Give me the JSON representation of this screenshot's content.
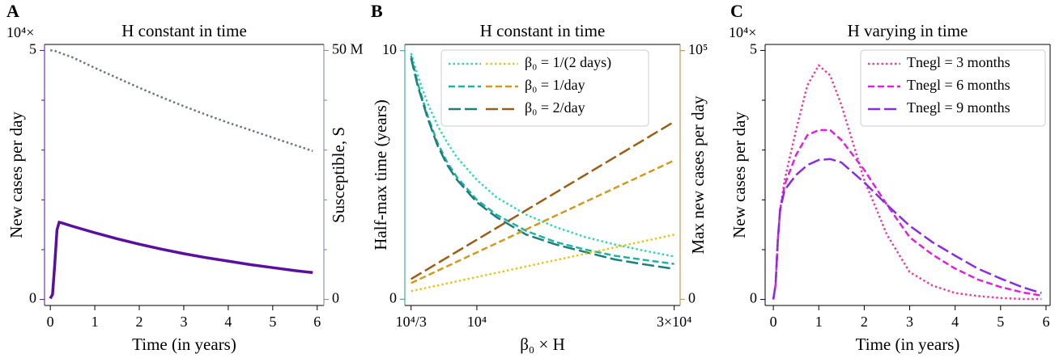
{
  "chart_data": [
    {
      "type": "line",
      "panel": "A",
      "title": "H constant in time",
      "xlabel": "Time (in years)",
      "ylabel": "New cases per day",
      "y2label": "Susceptible, S",
      "yoffset": "10⁴×",
      "ycolor": "#5b0f9e",
      "y2color": "#7a8699",
      "xlim": [
        -0.13,
        6.15
      ],
      "xticks": [
        0,
        1,
        2,
        3,
        4,
        5,
        6
      ],
      "ylim": [
        -0.12,
        5.12
      ],
      "yticks": [
        0,
        5
      ],
      "yminorticks": [
        1,
        2,
        3,
        4
      ],
      "y2lim": [
        -1.2,
        51.2
      ],
      "y2ticks": [
        0,
        {
          "value": 50,
          "label": "50 M"
        }
      ],
      "y2minorticks": [
        10,
        20,
        30,
        40
      ],
      "x": [
        0,
        0.05,
        0.1,
        0.15,
        0.2,
        0.25,
        0.5,
        1,
        1.5,
        2,
        2.5,
        3,
        3.5,
        4,
        4.5,
        5,
        5.5,
        5.9
      ],
      "series": [
        {
          "color": "#5b0f9e",
          "linestyle": "solid",
          "values": [
            0.02,
            0.1,
            0.7,
            1.4,
            1.55,
            1.54,
            1.47,
            1.34,
            1.22,
            1.11,
            1.01,
            0.92,
            0.84,
            0.77,
            0.7,
            0.64,
            0.58,
            0.54
          ]
        },
        {
          "color": "#6e7580",
          "linestyle": "dotted",
          "axis": "y2",
          "values": [
            50,
            50,
            49.9,
            49.8,
            49.6,
            49.4,
            48.6,
            46.5,
            44.5,
            42.5,
            40.6,
            38.8,
            37.1,
            35.5,
            34,
            32.5,
            31,
            29.8
          ]
        }
      ]
    },
    {
      "type": "line",
      "panel": "B",
      "title": "H constant in time",
      "xlabel": "β₀ × H",
      "ylabel": "Half-max time (years)",
      "y2label": "Max new cases per day",
      "ycolor": "#1a9e96",
      "y2color": "#b88a2c",
      "xlim": [
        2700,
        30600
      ],
      "xticks": [
        {
          "value": 3333.33,
          "label": "10⁴/3"
        },
        {
          "value": 10000,
          "label": "10⁴"
        },
        {
          "value": 30000,
          "label": "3×10⁴"
        }
      ],
      "ylim": [
        -0.25,
        10.25
      ],
      "yticks": [
        0,
        10
      ],
      "y2lim": [
        -2500,
        102500
      ],
      "y2ticks": [
        0,
        {
          "value": 100000,
          "label": "10⁵"
        }
      ],
      "x": [
        3333.33,
        4000,
        5000,
        6000,
        7000,
        8000,
        10000,
        12000,
        15000,
        18000,
        21000,
        24000,
        27000,
        30000
      ],
      "series": [
        {
          "name": "β₀ = 1/(2 days)",
          "color": "#2ed9b0",
          "linestyle": "dotted",
          "values": [
            9.9,
            9.0,
            7.9,
            7.0,
            6.3,
            5.7,
            4.8,
            4.1,
            3.4,
            2.9,
            2.5,
            2.2,
            1.95,
            1.72
          ]
        },
        {
          "name": "β₀ = 1/day",
          "color": "#20b2a0",
          "linestyle": "dashed",
          "values": [
            9.8,
            8.7,
            7.4,
            6.3,
            5.5,
            4.9,
            4.0,
            3.4,
            2.75,
            2.3,
            2.0,
            1.75,
            1.58,
            1.42
          ]
        },
        {
          "name": "β₀ = 2/day",
          "color": "#1a7f80",
          "linestyle": "longdash",
          "values": [
            9.7,
            8.6,
            7.3,
            6.2,
            5.4,
            4.8,
            3.9,
            3.3,
            2.6,
            2.2,
            1.9,
            1.6,
            1.4,
            1.22
          ]
        },
        {
          "color": "#e6c619",
          "linestyle": "dotted",
          "axis": "y2",
          "x": [
            3333.33,
            30000
          ],
          "values": [
            3247,
            25974
          ]
        },
        {
          "color": "#d19a1a",
          "linestyle": "dashed",
          "axis": "y2",
          "x": [
            3333.33,
            30000
          ],
          "values": [
            6494,
            55844
          ]
        },
        {
          "color": "#9c5e14",
          "linestyle": "longdash",
          "axis": "y2",
          "x": [
            3333.33,
            30000
          ],
          "values": [
            8117,
            71429
          ]
        }
      ]
    },
    {
      "type": "line",
      "panel": "C",
      "title": "H varying in time",
      "xlabel": "Time (in years)",
      "ylabel": "New cases per day",
      "yoffset": "10⁴×",
      "xlim": [
        -0.18,
        6.09
      ],
      "xticks": [
        0,
        1,
        2,
        3,
        4,
        5,
        6
      ],
      "ylim": [
        -0.12,
        5.12
      ],
      "yticks": [
        0,
        5
      ],
      "yminorticks": [
        1,
        2,
        3,
        4
      ],
      "x": [
        0,
        0.05,
        0.1,
        0.15,
        0.25,
        0.5,
        0.75,
        1,
        1.25,
        1.5,
        2,
        2.5,
        3,
        3.5,
        4,
        4.5,
        5,
        5.5,
        5.9
      ],
      "series": [
        {
          "name": "Tnegl = 3 months",
          "color": "#e8409f",
          "linestyle": "dotted",
          "values": [
            0,
            0.3,
            1.2,
            1.8,
            2.4,
            3.4,
            4.3,
            4.7,
            4.5,
            3.9,
            2.4,
            1.3,
            0.55,
            0.28,
            0.13,
            0.07,
            0.03,
            0.01,
            0.01
          ]
        },
        {
          "name": "Tnegl = 6 months",
          "color": "#e020e0",
          "linestyle": "dashed",
          "values": [
            0,
            0.3,
            1.2,
            1.8,
            2.3,
            2.9,
            3.3,
            3.4,
            3.4,
            3.2,
            2.6,
            1.9,
            1.25,
            0.9,
            0.62,
            0.4,
            0.25,
            0.14,
            0.08
          ]
        },
        {
          "name": "Tnegl = 9 months",
          "color": "#8a2be2",
          "linestyle": "longdash",
          "values": [
            0,
            0.3,
            1.2,
            1.8,
            2.2,
            2.5,
            2.7,
            2.8,
            2.82,
            2.75,
            2.35,
            1.9,
            1.48,
            1.15,
            0.88,
            0.62,
            0.42,
            0.24,
            0.13
          ]
        }
      ]
    }
  ]
}
